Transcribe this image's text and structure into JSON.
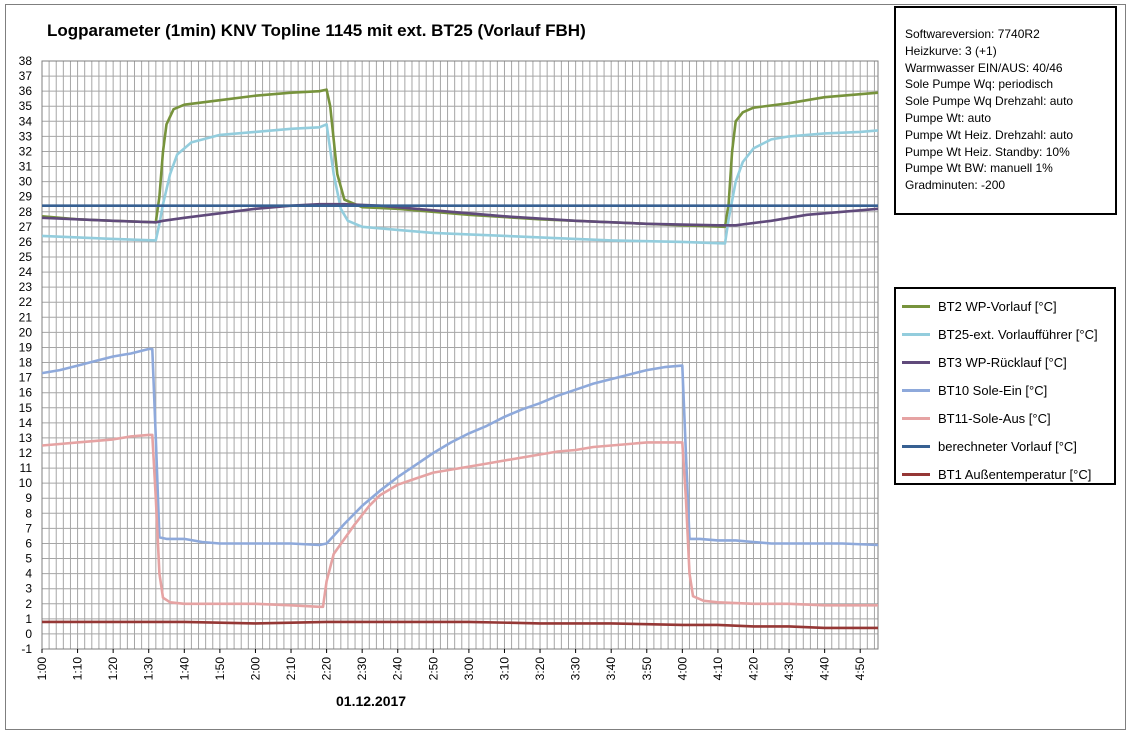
{
  "title": "Logparameter  (1min) KNV Topline  1145 mit ext. BT25 (Vorlauf  FBH)",
  "info_lines": [
    "Softwareversion: 7740R2",
    "Heizkurve: 3 (+1)",
    "Warmwasser EIN/AUS: 40/46",
    "Sole Pumpe Wq: periodisch",
    "Sole Pumpe Wq Drehzahl: auto",
    "Pumpe Wt: auto",
    "Pumpe Wt Heiz. Drehzahl: auto",
    "Pumpe Wt Heiz. Standby: 10%",
    "Pumpe Wt BW: manuell 1%",
    "Gradminuten: -200"
  ],
  "xlabel": "01.12.2017",
  "chart_data": {
    "type": "line",
    "title": "Logparameter  (1min) KNV Topline  1145 mit ext. BT25 (Vorlauf  FBH)",
    "xlabel": "01.12.2017",
    "ylabel": "",
    "x_unit": "minutes since 1:00",
    "xlim": [
      0,
      235
    ],
    "ylim": [
      -1,
      38
    ],
    "y_ticks": [
      -1,
      0,
      1,
      2,
      3,
      4,
      5,
      6,
      7,
      8,
      9,
      10,
      11,
      12,
      13,
      14,
      15,
      16,
      17,
      18,
      19,
      20,
      21,
      22,
      23,
      24,
      25,
      26,
      27,
      28,
      29,
      30,
      31,
      32,
      33,
      34,
      35,
      36,
      37,
      38
    ],
    "x_ticks": [
      "1:00",
      "1:10",
      "1:20",
      "1:30",
      "1:40",
      "1:50",
      "2:00",
      "2:10",
      "2:20",
      "2:30",
      "2:40",
      "2:50",
      "3:00",
      "3:10",
      "3:20",
      "3:30",
      "3:40",
      "3:50",
      "4:00",
      "4:10",
      "4:20",
      "4:30",
      "4:40",
      "4:50"
    ],
    "grid": true,
    "legend_position": "right",
    "series": [
      {
        "name": "BT2 WP-Vorlauf [°C]",
        "color": "#77933c",
        "points": [
          [
            0,
            27.7
          ],
          [
            10,
            27.5
          ],
          [
            20,
            27.4
          ],
          [
            32,
            27.3
          ],
          [
            33,
            29
          ],
          [
            34,
            32
          ],
          [
            35,
            33.8
          ],
          [
            37,
            34.8
          ],
          [
            40,
            35.1
          ],
          [
            50,
            35.4
          ],
          [
            60,
            35.7
          ],
          [
            70,
            35.9
          ],
          [
            78,
            36
          ],
          [
            80,
            36.1
          ],
          [
            81,
            35
          ],
          [
            83,
            30.5
          ],
          [
            85,
            28.8
          ],
          [
            90,
            28.3
          ],
          [
            100,
            28.2
          ],
          [
            110,
            28
          ],
          [
            120,
            27.8
          ],
          [
            140,
            27.5
          ],
          [
            160,
            27.3
          ],
          [
            180,
            27.1
          ],
          [
            192,
            27
          ],
          [
            193,
            28.5
          ],
          [
            194,
            32
          ],
          [
            195,
            34
          ],
          [
            197,
            34.6
          ],
          [
            200,
            34.9
          ],
          [
            210,
            35.2
          ],
          [
            220,
            35.6
          ],
          [
            230,
            35.8
          ],
          [
            235,
            35.9
          ]
        ]
      },
      {
        "name": "BT25-ext. Vorlaufführer [°C]",
        "color": "#93cddd",
        "points": [
          [
            0,
            26.4
          ],
          [
            10,
            26.3
          ],
          [
            20,
            26.2
          ],
          [
            32,
            26.1
          ],
          [
            33,
            27.2
          ],
          [
            34,
            28.5
          ],
          [
            36,
            30.5
          ],
          [
            38,
            31.8
          ],
          [
            42,
            32.6
          ],
          [
            50,
            33.1
          ],
          [
            60,
            33.3
          ],
          [
            70,
            33.5
          ],
          [
            78,
            33.6
          ],
          [
            80,
            33.8
          ],
          [
            82,
            30.5
          ],
          [
            84,
            28.2
          ],
          [
            86,
            27.4
          ],
          [
            90,
            27
          ],
          [
            100,
            26.8
          ],
          [
            110,
            26.6
          ],
          [
            120,
            26.5
          ],
          [
            140,
            26.3
          ],
          [
            160,
            26.1
          ],
          [
            180,
            26
          ],
          [
            192,
            25.9
          ],
          [
            193,
            27.5
          ],
          [
            195,
            30
          ],
          [
            197,
            31.3
          ],
          [
            200,
            32.2
          ],
          [
            205,
            32.8
          ],
          [
            210,
            33
          ],
          [
            220,
            33.2
          ],
          [
            230,
            33.3
          ],
          [
            235,
            33.4
          ]
        ]
      },
      {
        "name": "BT3 WP-Rücklauf [°C]",
        "color": "#604a7b",
        "points": [
          [
            0,
            27.6
          ],
          [
            10,
            27.5
          ],
          [
            20,
            27.4
          ],
          [
            32,
            27.3
          ],
          [
            34,
            27.4
          ],
          [
            40,
            27.6
          ],
          [
            50,
            27.9
          ],
          [
            60,
            28.2
          ],
          [
            70,
            28.4
          ],
          [
            78,
            28.5
          ],
          [
            85,
            28.5
          ],
          [
            95,
            28.4
          ],
          [
            110,
            28.1
          ],
          [
            130,
            27.7
          ],
          [
            150,
            27.4
          ],
          [
            170,
            27.2
          ],
          [
            190,
            27.1
          ],
          [
            195,
            27.1
          ],
          [
            205,
            27.4
          ],
          [
            215,
            27.8
          ],
          [
            225,
            28.0
          ],
          [
            235,
            28.2
          ]
        ]
      },
      {
        "name": "BT10 Sole-Ein [°C]",
        "color": "#8ea9db",
        "points": [
          [
            0,
            17.3
          ],
          [
            5,
            17.5
          ],
          [
            10,
            17.8
          ],
          [
            15,
            18.1
          ],
          [
            20,
            18.4
          ],
          [
            25,
            18.6
          ],
          [
            30,
            18.9
          ],
          [
            31,
            18.9
          ],
          [
            32,
            13
          ],
          [
            33,
            6.4
          ],
          [
            35,
            6.3
          ],
          [
            40,
            6.3
          ],
          [
            45,
            6.1
          ],
          [
            50,
            6
          ],
          [
            60,
            6
          ],
          [
            70,
            6
          ],
          [
            78,
            5.9
          ],
          [
            80,
            6
          ],
          [
            82,
            6.5
          ],
          [
            85,
            7.3
          ],
          [
            90,
            8.5
          ],
          [
            95,
            9.5
          ],
          [
            100,
            10.4
          ],
          [
            105,
            11.2
          ],
          [
            110,
            12
          ],
          [
            115,
            12.7
          ],
          [
            120,
            13.3
          ],
          [
            125,
            13.8
          ],
          [
            130,
            14.4
          ],
          [
            135,
            14.9
          ],
          [
            140,
            15.3
          ],
          [
            145,
            15.8
          ],
          [
            150,
            16.2
          ],
          [
            155,
            16.6
          ],
          [
            160,
            16.9
          ],
          [
            165,
            17.2
          ],
          [
            170,
            17.5
          ],
          [
            175,
            17.7
          ],
          [
            180,
            17.8
          ],
          [
            181,
            12
          ],
          [
            182,
            6.3
          ],
          [
            185,
            6.3
          ],
          [
            190,
            6.2
          ],
          [
            195,
            6.2
          ],
          [
            200,
            6.1
          ],
          [
            205,
            6
          ],
          [
            215,
            6
          ],
          [
            225,
            6
          ],
          [
            235,
            5.9
          ]
        ]
      },
      {
        "name": "BT11-Sole-Aus [°C]",
        "color": "#e6a3a3",
        "points": [
          [
            0,
            12.5
          ],
          [
            5,
            12.6
          ],
          [
            10,
            12.7
          ],
          [
            15,
            12.8
          ],
          [
            20,
            12.9
          ],
          [
            25,
            13.1
          ],
          [
            30,
            13.2
          ],
          [
            31,
            13.2
          ],
          [
            32,
            9
          ],
          [
            33,
            4
          ],
          [
            34,
            2.4
          ],
          [
            36,
            2.1
          ],
          [
            40,
            2
          ],
          [
            50,
            2
          ],
          [
            60,
            2
          ],
          [
            70,
            1.9
          ],
          [
            78,
            1.8
          ],
          [
            79,
            1.8
          ],
          [
            80,
            3.5
          ],
          [
            82,
            5.3
          ],
          [
            85,
            6.3
          ],
          [
            88,
            7.3
          ],
          [
            92,
            8.5
          ],
          [
            95,
            9.2
          ],
          [
            100,
            9.9
          ],
          [
            105,
            10.3
          ],
          [
            110,
            10.7
          ],
          [
            115,
            10.9
          ],
          [
            120,
            11.1
          ],
          [
            125,
            11.3
          ],
          [
            130,
            11.5
          ],
          [
            135,
            11.7
          ],
          [
            140,
            11.9
          ],
          [
            145,
            12.1
          ],
          [
            150,
            12.2
          ],
          [
            155,
            12.4
          ],
          [
            160,
            12.5
          ],
          [
            165,
            12.6
          ],
          [
            170,
            12.7
          ],
          [
            175,
            12.7
          ],
          [
            180,
            12.7
          ],
          [
            181,
            9
          ],
          [
            182,
            4
          ],
          [
            183,
            2.5
          ],
          [
            186,
            2.2
          ],
          [
            190,
            2.1
          ],
          [
            200,
            2
          ],
          [
            210,
            2
          ],
          [
            220,
            1.9
          ],
          [
            230,
            1.9
          ],
          [
            235,
            1.9
          ]
        ]
      },
      {
        "name": "berechneter Vorlauf [°C]",
        "color": "#376092",
        "points": [
          [
            0,
            28.4
          ],
          [
            60,
            28.4
          ],
          [
            120,
            28.4
          ],
          [
            180,
            28.4
          ],
          [
            235,
            28.4
          ]
        ]
      },
      {
        "name": "BT1 Außentemperatur [°C]",
        "color": "#953735",
        "points": [
          [
            0,
            0.8
          ],
          [
            20,
            0.8
          ],
          [
            40,
            0.8
          ],
          [
            60,
            0.7
          ],
          [
            80,
            0.8
          ],
          [
            100,
            0.8
          ],
          [
            120,
            0.8
          ],
          [
            140,
            0.7
          ],
          [
            160,
            0.7
          ],
          [
            180,
            0.6
          ],
          [
            190,
            0.6
          ],
          [
            200,
            0.5
          ],
          [
            210,
            0.5
          ],
          [
            220,
            0.4
          ],
          [
            235,
            0.4
          ]
        ]
      }
    ]
  }
}
